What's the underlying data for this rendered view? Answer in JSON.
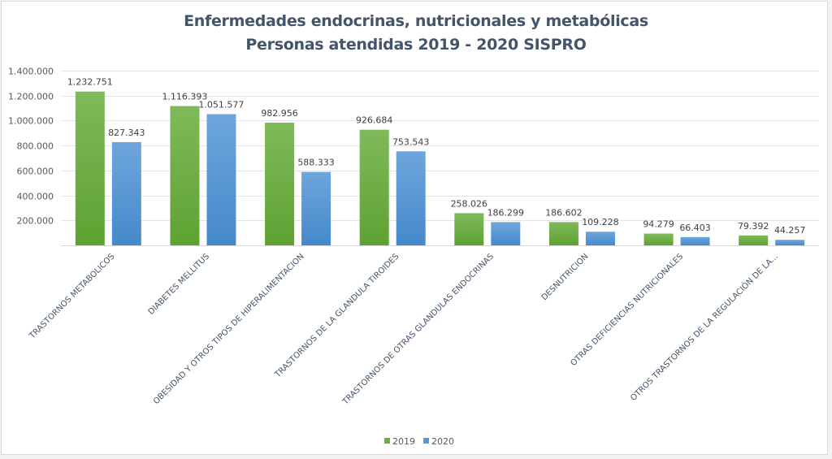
{
  "chart_data": {
    "type": "bar",
    "title": "Enfermedades endocrinas, nutricionales y metabólicas",
    "subtitle": "Personas atendidas 2019 - 2020 SISPRO",
    "xlabel": "",
    "ylabel": "",
    "ylim": [
      0,
      1400000
    ],
    "yticks": [
      0,
      200000,
      400000,
      600000,
      800000,
      1000000,
      1200000,
      1400000
    ],
    "ytick_labels": [
      "",
      "200.000",
      "400.000",
      "600.000",
      "800.000",
      "1.000.000",
      "1.200.000",
      "1.400.000"
    ],
    "grid": true,
    "legend_position": "bottom",
    "categories": [
      "TRASTORNOS METABOLICOS",
      "DIABETES MELLITUS",
      "OBESIDAD Y OTROS TIPOS DE HIPERALIMENTACION",
      "TRASTORNOS DE LA GLANDULA TIROIDES",
      "TRASTORNOS DE OTRAS GLANDULAS ENDOCRINAS",
      "DESNUTRICION",
      "OTRAS DEFICIENCIAS NUTRICIONALES",
      "OTROS TRASTORNOS DE LA REGULACIÓN DE LA..."
    ],
    "series": [
      {
        "name": "2019",
        "color": "#70ad47",
        "values": [
          1232751,
          1116393,
          982956,
          926684,
          258026,
          186602,
          94279,
          79392
        ],
        "labels": [
          "1.232.751",
          "1.116.393",
          "982.956",
          "926.684",
          "258.026",
          "186.602",
          "94.279",
          "79.392"
        ]
      },
      {
        "name": "2020",
        "color": "#5b9bd5",
        "values": [
          827343,
          1051577,
          588333,
          753543,
          186299,
          109228,
          66403,
          44257
        ],
        "labels": [
          "827.343",
          "1.051.577",
          "588.333",
          "753.543",
          "186.299",
          "109.228",
          "66.403",
          "44.257"
        ]
      }
    ]
  }
}
